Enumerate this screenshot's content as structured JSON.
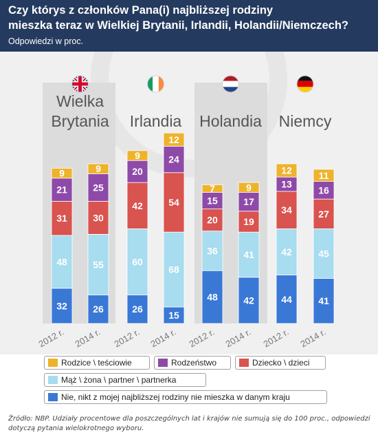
{
  "title_line1": "Czy którys z członków Pana(i) najbliższej rodziny",
  "title_line2": "mieszka teraz w Wielkiej Brytanii, Irlandii, Holandii/Niemczech?",
  "subtitle": "Odpowiedzi w proc.",
  "source": "Źródło: NBP. Udziały procentowe dla poszczególnych lat i krajów nie sumują się do 100 proc., odpowiedzi dotyczą pytania wielokrotnego wyboru.",
  "chart_data": {
    "type": "bar",
    "stacked": true,
    "countries": [
      {
        "name_lines": [
          "Wielka",
          "Brytania"
        ],
        "flag": "uk-flag-icon"
      },
      {
        "name_lines": [
          "Irlandia"
        ],
        "flag": "ireland-flag-icon"
      },
      {
        "name_lines": [
          "Holandia"
        ],
        "flag": "netherlands-flag-icon"
      },
      {
        "name_lines": [
          "Niemcy"
        ],
        "flag": "germany-flag-icon"
      }
    ],
    "categories": [
      "2012 r.",
      "2014 r.",
      "2012 r.",
      "2014 r.",
      "2012 r.",
      "2014 r.",
      "2012 r.",
      "2014 r."
    ],
    "series": [
      {
        "name": "Nie, nikt z mojej najbliższej rodziny nie mieszka w danym kraju",
        "color": "#3a78d6",
        "values": [
          32,
          26,
          26,
          15,
          48,
          42,
          44,
          41
        ]
      },
      {
        "name": "Mąż \\ żona \\ partner \\ partnerka",
        "color": "#a8dcef",
        "values": [
          48,
          55,
          60,
          68,
          36,
          41,
          42,
          45
        ]
      },
      {
        "name": "Dziecko \\ dzieci",
        "color": "#d9534f",
        "values": [
          31,
          30,
          42,
          54,
          20,
          19,
          34,
          27
        ]
      },
      {
        "name": "Rodzeństwo",
        "color": "#8e4aa8",
        "values": [
          21,
          25,
          20,
          24,
          15,
          17,
          13,
          16
        ]
      },
      {
        "name": "Rodzice \\ teściowie",
        "color": "#eeb32c",
        "values": [
          9,
          9,
          9,
          12,
          7,
          9,
          12,
          11
        ]
      }
    ],
    "legend_rows": [
      [
        4,
        3,
        2
      ],
      [
        1
      ],
      [
        0
      ]
    ]
  }
}
